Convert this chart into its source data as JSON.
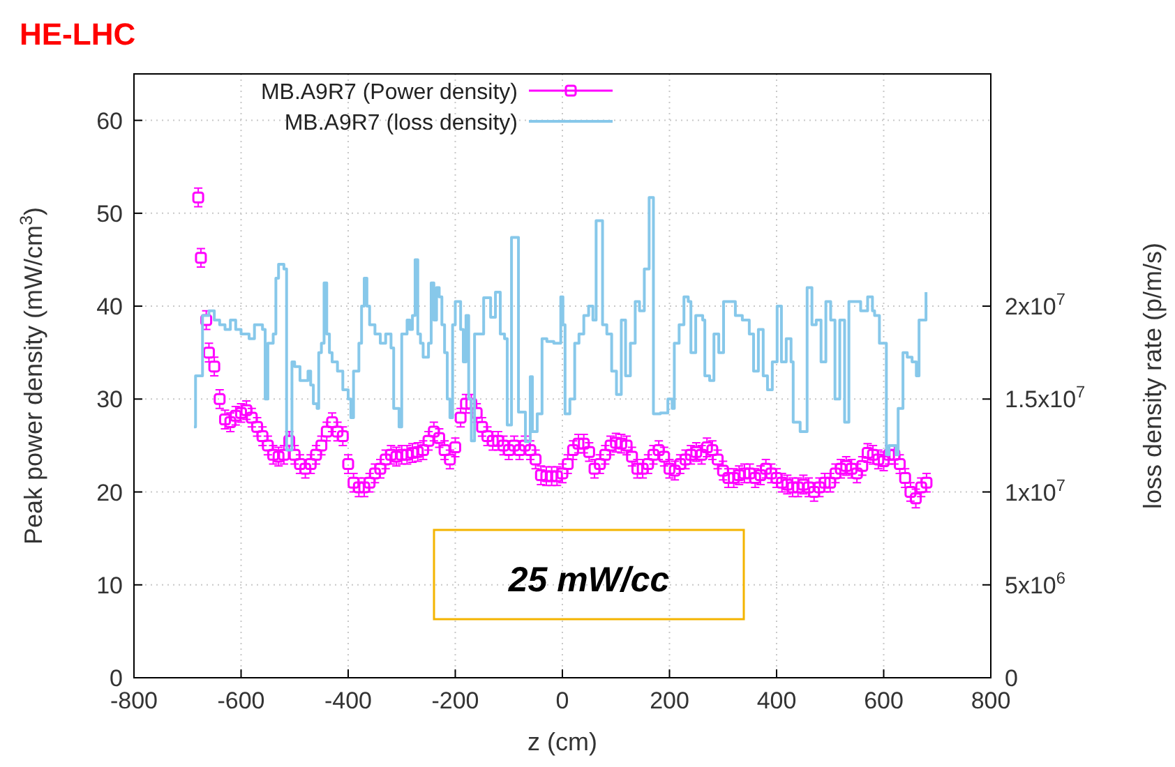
{
  "chart_data": {
    "type": "scatter",
    "title": "HE-LHC",
    "xlabel": "z (cm)",
    "ylabel": "Peak power density (mW/cm$^{3}$)",
    "y2label": "loss density rate (p/m/s)",
    "xlim": [
      -800,
      800
    ],
    "xticks": [
      -800,
      -600,
      -400,
      -200,
      0,
      200,
      400,
      600,
      800
    ],
    "ylim": [
      0,
      65
    ],
    "yticks": [
      0,
      10,
      20,
      30,
      40,
      50,
      60
    ],
    "y2lim": [
      0,
      32500000
    ],
    "y2ticks": [
      0,
      {
        "value": 5000000,
        "label": "5x10$^{6}$"
      },
      {
        "value": 10000000,
        "label": "1x10$^{7}$"
      },
      {
        "value": 15000000,
        "label": "1.5x10$^{7}$"
      },
      {
        "value": 20000000,
        "label": "2x10$^{7}$"
      }
    ],
    "grid": true,
    "legend": "top left",
    "annotations": [
      "25 mW/cc"
    ],
    "series": [
      {
        "name": "MB.A9R7 (Power density)",
        "color": "#ff00ff",
        "marker": "square",
        "x": [
          -680,
          -675,
          -665,
          -660,
          -650,
          -640,
          -630,
          -620,
          -610,
          -600,
          -590,
          -580,
          -570,
          -560,
          -550,
          -540,
          -530,
          -520,
          -510,
          -500,
          -490,
          -480,
          -470,
          -460,
          -450,
          -440,
          -430,
          -420,
          -410,
          -400,
          -390,
          -380,
          -370,
          -360,
          -350,
          -340,
          -330,
          -320,
          -310,
          -300,
          -290,
          -280,
          -270,
          -260,
          -250,
          -240,
          -230,
          -220,
          -210,
          -200,
          -190,
          -180,
          -170,
          -160,
          -150,
          -140,
          -130,
          -120,
          -110,
          -100,
          -90,
          -80,
          -70,
          -60,
          -50,
          -40,
          -30,
          -20,
          -10,
          0,
          10,
          20,
          30,
          40,
          50,
          60,
          70,
          80,
          90,
          100,
          110,
          120,
          130,
          140,
          150,
          160,
          170,
          180,
          190,
          200,
          210,
          220,
          230,
          240,
          250,
          260,
          270,
          280,
          290,
          300,
          310,
          320,
          330,
          340,
          350,
          360,
          370,
          380,
          390,
          400,
          410,
          420,
          430,
          440,
          450,
          460,
          470,
          480,
          490,
          500,
          510,
          520,
          530,
          540,
          550,
          560,
          570,
          580,
          590,
          600,
          610,
          620,
          630,
          640,
          650,
          660,
          670,
          680
        ],
        "values": [
          51.7,
          45.2,
          38.5,
          35,
          33.5,
          30,
          27.8,
          27.5,
          28.2,
          28.5,
          28.8,
          28,
          27,
          26,
          25,
          24,
          23.8,
          24,
          25.5,
          24,
          23,
          22.5,
          23,
          24,
          25,
          26.5,
          27.5,
          26.5,
          26,
          23,
          21,
          20.5,
          20.5,
          21,
          22,
          22.5,
          23.5,
          24,
          23.8,
          24,
          24,
          24.2,
          24.3,
          24.5,
          25.5,
          26.5,
          25.8,
          24.5,
          23.5,
          24.8,
          28,
          29.5,
          29.5,
          28.5,
          27,
          26,
          25.5,
          25.5,
          25,
          24.5,
          25,
          24.5,
          25,
          24.5,
          23.5,
          21.8,
          21.7,
          21.7,
          21.7,
          22,
          23,
          24.5,
          25.2,
          25.2,
          24.3,
          22.5,
          23,
          24,
          25,
          25.3,
          25.2,
          25,
          23.8,
          22.5,
          22.5,
          23,
          24,
          24.5,
          23.8,
          22.5,
          22.3,
          23,
          23.5,
          24,
          24.3,
          24,
          24.8,
          24.5,
          23.5,
          22.3,
          21.5,
          21.5,
          21.8,
          22,
          22,
          21.5,
          21.8,
          22.5,
          22,
          21.5,
          21,
          20.8,
          20.5,
          20.5,
          20.8,
          20.5,
          20,
          20.5,
          21,
          21,
          22,
          22.5,
          22.8,
          22.5,
          22,
          22.8,
          24.2,
          24,
          23.5,
          23.3,
          24,
          24,
          23,
          21.5,
          20,
          19.3,
          20.5,
          21
        ],
        "errors": [
          1,
          1,
          1,
          1,
          1,
          1,
          1,
          1,
          1,
          1,
          1,
          1,
          1,
          1,
          1,
          1,
          1,
          1,
          1,
          1,
          1,
          1,
          1,
          1,
          1,
          1,
          1,
          1,
          1,
          1,
          1,
          1,
          1,
          1,
          1,
          1,
          1,
          1,
          1,
          1,
          1,
          1,
          1,
          1,
          1,
          1,
          1,
          1,
          1,
          1,
          1,
          1,
          1,
          1,
          1,
          1,
          1,
          1,
          1,
          1,
          1,
          1,
          1,
          1,
          1,
          1,
          1,
          1,
          1,
          1,
          1,
          1,
          1,
          1,
          1,
          1,
          1,
          1,
          1,
          1,
          1,
          1,
          1,
          1,
          1,
          1,
          1,
          1,
          1,
          1,
          1,
          1,
          1,
          1,
          1,
          1,
          1,
          1,
          1,
          1,
          1,
          1,
          1,
          1,
          1,
          1,
          1,
          1,
          1,
          1,
          1,
          1,
          1,
          1,
          1,
          1,
          1,
          1,
          1,
          1,
          1,
          1,
          1,
          1,
          1,
          1,
          1,
          1,
          1,
          1,
          1,
          1,
          1,
          1,
          1,
          1,
          1,
          1
        ]
      },
      {
        "name": "MB.A9R7 (loss density)",
        "type": "step",
        "axis": "y2",
        "color": "#87c8ea",
        "line_style": "solid",
        "x": [
          -688,
          -685,
          -672,
          -660,
          -650,
          -640,
          -630,
          -620,
          -610,
          -600,
          -585,
          -575,
          -560,
          -555,
          -550,
          -540,
          -535,
          -530,
          -520,
          -515,
          -505,
          -500,
          -490,
          -475,
          -470,
          -465,
          -458,
          -455,
          -450,
          -445,
          -440,
          -435,
          -430,
          -420,
          -410,
          -400,
          -395,
          -390,
          -380,
          -375,
          -370,
          -365,
          -360,
          -350,
          -340,
          -330,
          -320,
          -315,
          -305,
          -300,
          -290,
          -285,
          -280,
          -275,
          -270,
          -265,
          -260,
          -250,
          -245,
          -240,
          -235,
          -230,
          -225,
          -220,
          -215,
          -210,
          -205,
          -200,
          -190,
          -185,
          -180,
          -175,
          -170,
          -164,
          -147,
          -134,
          -125,
          -116,
          -108,
          -103,
          -95,
          -82,
          -69,
          -60,
          -56,
          -47,
          -38,
          -29,
          -16,
          -3,
          1,
          5,
          14,
          23,
          31,
          40,
          49,
          57,
          63,
          75,
          83,
          92,
          101,
          110,
          118,
          127,
          136,
          144,
          153,
          162,
          170,
          183,
          197,
          205,
          209,
          218,
          227,
          235,
          240,
          249,
          262,
          266,
          275,
          283,
          292,
          301,
          310,
          323,
          336,
          349,
          357,
          366,
          375,
          383,
          392,
          401,
          409,
          418,
          427,
          431,
          444,
          457,
          466,
          474,
          483,
          492,
          501,
          509,
          518,
          527,
          535,
          548,
          557,
          570,
          579,
          583,
          592,
          601,
          605,
          610,
          623,
          627,
          636,
          644,
          653,
          661,
          666,
          674,
          679
        ],
        "values": [
          13500000,
          16250000,
          19500000,
          19750000,
          19250000,
          19000000,
          18750000,
          19250000,
          18750000,
          18500000,
          18250000,
          19000000,
          18750000,
          15000000,
          18000000,
          18500000,
          21500000,
          22250000,
          22000000,
          12250000,
          17000000,
          16750000,
          16000000,
          16500000,
          15750000,
          14750000,
          14500000,
          17500000,
          18000000,
          21250000,
          18500000,
          17500000,
          17000000,
          16500000,
          15500000,
          15000000,
          14000000,
          16500000,
          18000000,
          20000000,
          21500000,
          20000000,
          19000000,
          18500000,
          18000000,
          18500000,
          17750000,
          14500000,
          13500000,
          18500000,
          19250000,
          18750000,
          19500000,
          22500000,
          18500000,
          18000000,
          17250000,
          18000000,
          21250000,
          19250000,
          21000000,
          20500000,
          19000000,
          17500000,
          15000000,
          14000000,
          19000000,
          20250000,
          18750000,
          17000000,
          19500000,
          15000000,
          12750000,
          18500000,
          20450000,
          19400000,
          20750000,
          18500000,
          18250000,
          13600000,
          23700000,
          14300000,
          12700000,
          16200000,
          13250000,
          14200000,
          18250000,
          18100000,
          18000000,
          20500000,
          19000000,
          14200000,
          15000000,
          18000000,
          18500000,
          19500000,
          20000000,
          19250000,
          24600000,
          19000000,
          18500000,
          16500000,
          15250000,
          19250000,
          16250000,
          18000000,
          20250000,
          19750000,
          22000000,
          25850000,
          14200000,
          14250000,
          15000000,
          14500000,
          18000000,
          19000000,
          20500000,
          20250000,
          17500000,
          19500000,
          19250000,
          16250000,
          16000000,
          18500000,
          17500000,
          20250000,
          20250000,
          19500000,
          19250000,
          18500000,
          16500000,
          18750000,
          16250000,
          15500000,
          17000000,
          20000000,
          17000000,
          18250000,
          17000000,
          13750000,
          13250000,
          21000000,
          19000000,
          19250000,
          17000000,
          20250000,
          19250000,
          15000000,
          19250000,
          13750000,
          20250000,
          20250000,
          19750000,
          20500000,
          19750000,
          19500000,
          18000000,
          18000000,
          12000000,
          12500000,
          12000000,
          14500000,
          17500000,
          17250000,
          17000000,
          16250000,
          19250000,
          19250000,
          20750000
        ]
      }
    ]
  }
}
